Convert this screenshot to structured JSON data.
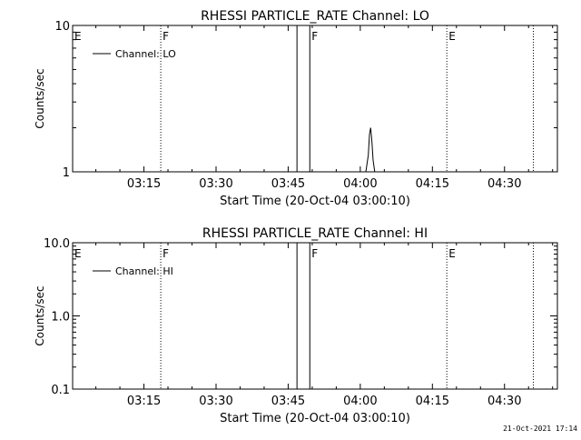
{
  "footer": {
    "timestamp": "21-Oct-2021 17:14"
  },
  "chart_data": [
    {
      "type": "line",
      "title": "RHESSI PARTICLE_RATE Channel: LO",
      "xlabel": "Start Time (20-Oct-04 03:00:10)",
      "ylabel": "Counts/sec",
      "yscale": "log",
      "xlim": [
        "03:00:10",
        "04:41:00"
      ],
      "ylim": [
        1,
        10
      ],
      "x_ticks": [
        "03:15",
        "03:30",
        "03:45",
        "04:00",
        "04:15",
        "04:30"
      ],
      "y_ticks": [
        "1",
        "10"
      ],
      "grid": false,
      "legend": {
        "position": "top-left",
        "entries": [
          "Channel: LO"
        ]
      },
      "series": [
        {
          "name": "Channel: LO",
          "x": [
            "04:01:10",
            "04:01:40",
            "04:01:55",
            "04:02:10",
            "04:02:25",
            "04:02:40",
            "04:03:00"
          ],
          "y": [
            1,
            1.3,
            1.8,
            2.0,
            1.6,
            1.2,
            1
          ]
        }
      ],
      "markers": [
        {
          "label": "E",
          "time": "03:00:10",
          "style": "none"
        },
        {
          "label": "F",
          "time": "03:18:30",
          "style": "dotted"
        },
        {
          "label": "",
          "time": "03:46:50",
          "style": "solid"
        },
        {
          "label": "F",
          "time": "03:49:30",
          "style": "solid"
        },
        {
          "label": "E",
          "time": "04:18:00",
          "style": "dotted"
        },
        {
          "label": "",
          "time": "04:36:00",
          "style": "dotted"
        }
      ]
    },
    {
      "type": "line",
      "title": "RHESSI PARTICLE_RATE Channel: HI",
      "xlabel": "Start Time (20-Oct-04 03:00:10)",
      "ylabel": "Counts/sec",
      "yscale": "log",
      "xlim": [
        "03:00:10",
        "04:41:00"
      ],
      "ylim": [
        0.1,
        10
      ],
      "x_ticks": [
        "03:15",
        "03:30",
        "03:45",
        "04:00",
        "04:15",
        "04:30"
      ],
      "y_ticks": [
        "0.1",
        "1.0",
        "10.0"
      ],
      "grid": false,
      "legend": {
        "position": "top-left",
        "entries": [
          "Channel: HI"
        ]
      },
      "series": [
        {
          "name": "Channel: HI",
          "x": [],
          "y": []
        }
      ],
      "markers": [
        {
          "label": "E",
          "time": "03:00:10",
          "style": "none"
        },
        {
          "label": "F",
          "time": "03:18:30",
          "style": "dotted"
        },
        {
          "label": "",
          "time": "03:46:50",
          "style": "solid"
        },
        {
          "label": "F",
          "time": "03:49:30",
          "style": "solid"
        },
        {
          "label": "E",
          "time": "04:18:00",
          "style": "dotted"
        },
        {
          "label": "",
          "time": "04:36:00",
          "style": "dotted"
        }
      ]
    }
  ]
}
